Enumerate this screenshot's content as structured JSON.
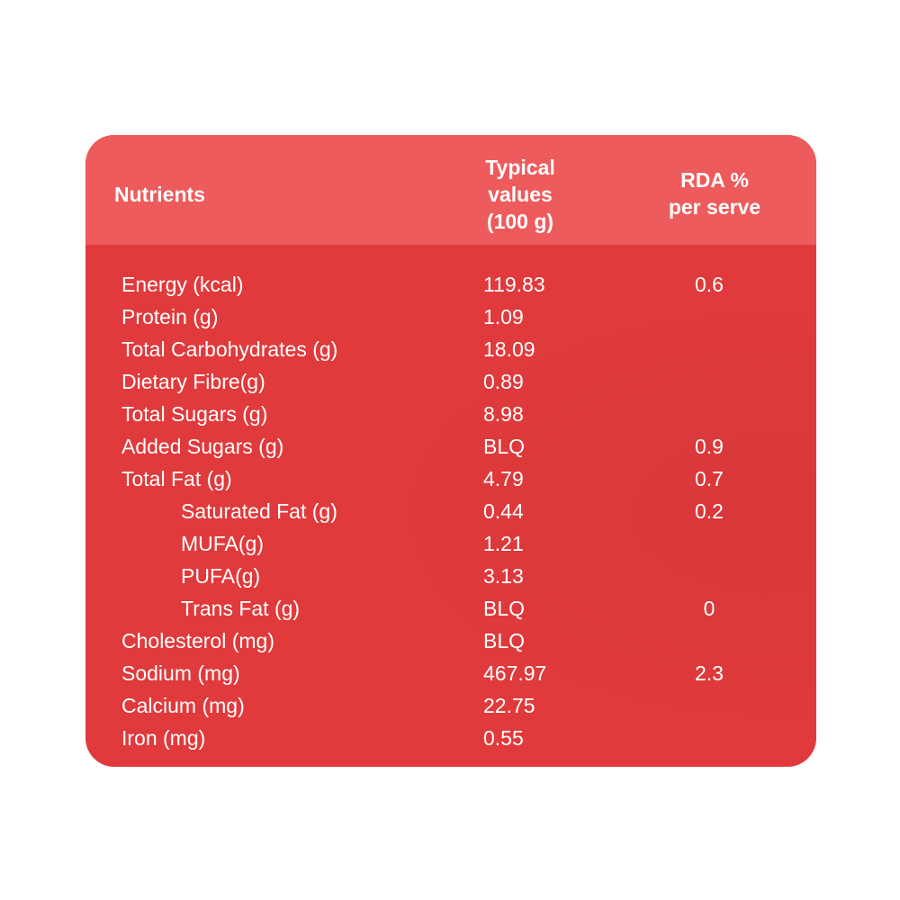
{
  "header": {
    "nutrients": "Nutrients",
    "typical": [
      "Typical",
      "values",
      "(100 g)"
    ],
    "rda": [
      "RDA %",
      "per serve"
    ]
  },
  "table": {
    "rows": [
      {
        "name": "Energy (kcal)",
        "value": "119.83",
        "rda": "0.6"
      },
      {
        "name": "Protein (g)",
        "value": "1.09"
      },
      {
        "name": "Total Carbohydrates (g)",
        "value": "18.09"
      },
      {
        "name": "Dietary Fibre(g)",
        "value": "0.89"
      },
      {
        "name": "Total Sugars (g)",
        "value": "8.98"
      },
      {
        "name": "Added Sugars (g)",
        "value": "BLQ",
        "rda": "0.9"
      },
      {
        "name": "Total Fat (g)",
        "value": "4.79",
        "rda": "0.7"
      },
      {
        "name": "Saturated Fat (g)",
        "value": "0.44",
        "rda": "0.2",
        "sub": true
      },
      {
        "name": "MUFA(g)",
        "value": "1.21",
        "sub": true
      },
      {
        "name": "PUFA(g)",
        "value": "3.13",
        "sub": true
      },
      {
        "name": "Trans Fat (g)",
        "value": "BLQ",
        "rda": "0",
        "sub": true
      },
      {
        "name": "Cholesterol (mg)",
        "value": "BLQ"
      },
      {
        "name": "Sodium (mg)",
        "value": "467.97",
        "rda": "2.3"
      },
      {
        "name": "Calcium (mg)",
        "value": "22.75"
      },
      {
        "name": "Iron (mg)",
        "value": "0.55"
      }
    ]
  }
}
